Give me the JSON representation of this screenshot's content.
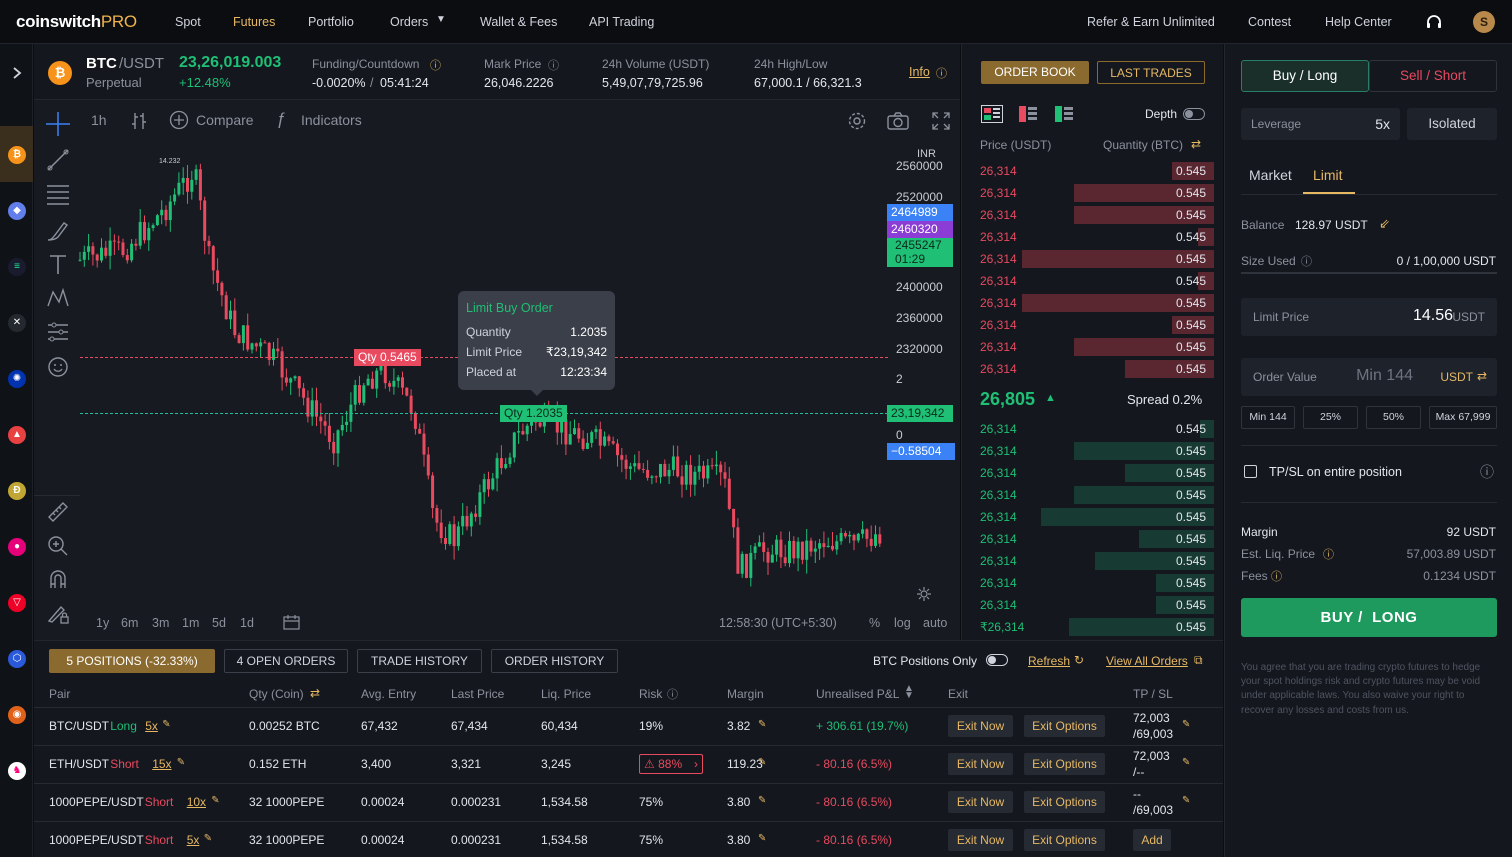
{
  "brand": {
    "name": "coinswitch",
    "suffix": "PRO"
  },
  "nav": {
    "items": [
      "Spot",
      "Futures",
      "Portfolio",
      "Orders",
      "Wallet & Fees",
      "API Trading"
    ],
    "right": [
      "Refer & Earn Unlimited",
      "Contest",
      "Help Center"
    ],
    "avatar": "S",
    "active_color": "#e6b864"
  },
  "ticker": {
    "pair_base": "BTC",
    "pair_quote": "/USDT",
    "contract": "Perpetual",
    "price": "23,26,019.003",
    "change": "+12.48%",
    "funding_label": "Funding/Countdown",
    "funding_rate": "-0.0020%",
    "funding_sep": "/",
    "countdown": "05:41:24",
    "mark_label": "Mark Price",
    "mark_value": "26,046.2226",
    "vol_label": "24h Volume (USDT)",
    "vol_value": "5,49,07,79,725.96",
    "hl_label": "24h High/Low",
    "hl_value": "67,000.1 / 66,321.3",
    "info": "Info"
  },
  "chart": {
    "interval": "1h",
    "compare": "Compare",
    "indicators": "Indicators",
    "currency": "INR",
    "yticks": [
      "2560000",
      "2520000",
      "2400000",
      "2360000",
      "2320000",
      "2",
      "0"
    ],
    "price_tags": [
      "2464989",
      "2460320",
      "2455247",
      "01:29",
      "23,19,342",
      "−0.58504"
    ],
    "peak_label": "14.232",
    "sell_order_tag": "Qty 0.5465",
    "buy_order_tag": "Qty 1.2035",
    "timeframes": [
      "1y",
      "6m",
      "3m",
      "1m",
      "5d",
      "1d"
    ],
    "clock": "12:58:30 (UTC+5:30)",
    "scale_opts": [
      "%",
      "log",
      "auto"
    ],
    "tooltip": {
      "title": "Limit Buy Order",
      "rows": [
        [
          "Quantity",
          "1.2035"
        ],
        [
          "Limit Price",
          "₹23,19,342"
        ],
        [
          "Placed at",
          "12:23:34"
        ]
      ]
    }
  },
  "orderbook": {
    "tabs": [
      "ORDER BOOK",
      "LAST TRADES"
    ],
    "depth_label": "Depth",
    "price_header": "Price (USDT)",
    "qty_header": "Quantity (BTC)",
    "asks": [
      {
        "p": "26,314",
        "q": "0.545",
        "f": 0.18
      },
      {
        "p": "26,314",
        "q": "0.545",
        "f": 0.6
      },
      {
        "p": "26,314",
        "q": "0.545",
        "f": 0.6
      },
      {
        "p": "26,314",
        "q": "0.545",
        "f": 0.07
      },
      {
        "p": "26,314",
        "q": "0.545",
        "f": 0.82
      },
      {
        "p": "26,314",
        "q": "0.545",
        "f": 0.07
      },
      {
        "p": "26,314",
        "q": "0.545",
        "f": 0.82
      },
      {
        "p": "26,314",
        "q": "0.545",
        "f": 0.18
      },
      {
        "p": "26,314",
        "q": "0.545",
        "f": 0.6
      },
      {
        "p": "26,314",
        "q": "0.545",
        "f": 0.38
      }
    ],
    "last_price": "26,805",
    "spread": "Spread 0.2%",
    "bids": [
      {
        "p": "26,314",
        "q": "0.545",
        "f": 0.06
      },
      {
        "p": "26,314",
        "q": "0.545",
        "f": 0.6
      },
      {
        "p": "26,314",
        "q": "0.545",
        "f": 0.38
      },
      {
        "p": "26,314",
        "q": "0.545",
        "f": 0.6
      },
      {
        "p": "26,314",
        "q": "0.545",
        "f": 0.74
      },
      {
        "p": "26,314",
        "q": "0.545",
        "f": 0.32
      },
      {
        "p": "26,314",
        "q": "0.545",
        "f": 0.51
      },
      {
        "p": "26,314",
        "q": "0.545",
        "f": 0.25
      },
      {
        "p": "26,314",
        "q": "0.545",
        "f": 0.25
      },
      {
        "p": "₹26,314",
        "q": "0.545",
        "f": 0.62
      }
    ]
  },
  "order_panel": {
    "buy_tab": "Buy / Long",
    "sell_tab": "Sell / Short",
    "leverage_label": "Leverage",
    "leverage_value": "5x",
    "margin_mode": "Isolated",
    "type_tabs": [
      "Market",
      "Limit"
    ],
    "balance_label": "Balance",
    "balance_value": "128.97 USDT",
    "size_label": "Size Used",
    "size_value": "0 / 1,00,000 USDT",
    "limit_label": "Limit Price",
    "limit_value": "14.56",
    "limit_unit": "USDT",
    "order_value_label": "Order Value",
    "order_value_placeholder": "Min 144",
    "order_value_unit": "USDT",
    "quick": [
      "Min 144",
      "25%",
      "50%",
      "Max 67,999"
    ],
    "tpsl": "TP/SL on entire position",
    "margin_label": "Margin",
    "margin_value": "92 USDT",
    "liq_label": "Est. Liq. Price",
    "liq_value": "57,003.89 USDT",
    "fees_label": "Fees",
    "fees_value": "0.1234 USDT",
    "submit": "BUY /  LONG",
    "disclaimer": "You agree that you are trading crypto futures to hedge your spot holdings risk and crypto futures may be void under applicable laws. You also waive your right to recover any losses and costs from us."
  },
  "positions": {
    "tabs": [
      "5 POSITIONS (-32.33%)",
      "4 OPEN ORDERS",
      "TRADE HISTORY",
      "ORDER HISTORY"
    ],
    "toggle_label": "BTC Positions Only",
    "refresh": "Refresh",
    "view_all": "View All Orders",
    "headers": [
      "Pair",
      "Qty (Coin)",
      "Avg. Entry",
      "Last Price",
      "Liq. Price",
      "Risk",
      "Margin",
      "Unrealised P&L",
      "Exit",
      "TP / SL"
    ],
    "exit_now": "Exit Now",
    "exit_options": "Exit Options",
    "rows": [
      {
        "pair": "BTC/USDT",
        "side": "Long",
        "lev": "5x",
        "qty": "0.00252 BTC",
        "entry": "67,432",
        "last": "67,434",
        "liq": "60,434",
        "risk": "19%",
        "margin": "3.82",
        "pnl": "+ 306.61 (19.7%)",
        "tp": "72,003",
        "sl": "/69,003"
      },
      {
        "pair": "ETH/USDT",
        "side": "Short",
        "lev": "15x",
        "qty": "0.152 ETH",
        "entry": "3,400",
        "last": "3,321",
        "liq": "3,245",
        "risk": "88%",
        "margin": "119.23",
        "pnl": "- 80.16 (6.5%)",
        "tp": "72,003",
        "sl": "/--"
      },
      {
        "pair": "1000PEPE/USDT",
        "side": "Short",
        "lev": "10x",
        "qty": "32 1000PEPE",
        "entry": "0.00024",
        "last": "0.000231",
        "liq": "1,534.58",
        "risk": "75%",
        "margin": "3.80",
        "pnl": "- 80.16 (6.5%)",
        "tp": "--",
        "sl": "/69,003"
      },
      {
        "pair": "1000PEPE/USDT",
        "side": "Short",
        "lev": "5x",
        "qty": "32 1000PEPE",
        "entry": "0.00024",
        "last": "0.000231",
        "liq": "1,534.58",
        "risk": "75%",
        "margin": "3.80",
        "pnl": "- 80.16 (6.5%)",
        "tp": "Add",
        "sl": ""
      }
    ]
  }
}
